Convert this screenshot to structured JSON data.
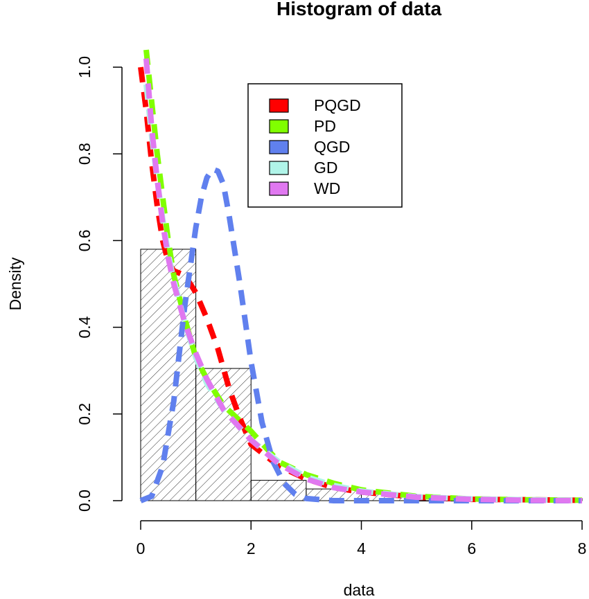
{
  "chart_data": {
    "type": "histogram",
    "title": "Histogram of data",
    "xlabel": "data",
    "ylabel": "Density",
    "xlim": [
      0,
      8
    ],
    "ylim": [
      0,
      1.0
    ],
    "x_ticks": [
      "0",
      "2",
      "4",
      "6",
      "8"
    ],
    "y_ticks": [
      "0.0",
      "0.2",
      "0.4",
      "0.6",
      "0.8",
      "1.0"
    ],
    "bins": [
      {
        "start": 0,
        "end": 1,
        "density": 0.58
      },
      {
        "start": 1,
        "end": 2,
        "density": 0.305
      },
      {
        "start": 2,
        "end": 3,
        "density": 0.047
      },
      {
        "start": 3,
        "end": 4,
        "density": 0.027
      },
      {
        "start": 4,
        "end": 5,
        "density": 0.015
      },
      {
        "start": 5,
        "end": 6,
        "density": 0.0
      },
      {
        "start": 6,
        "end": 7,
        "density": 0.0
      },
      {
        "start": 7,
        "end": 8,
        "density": 0.005
      }
    ],
    "legend": {
      "placement": "top-right",
      "entries": [
        {
          "name": "PQGD",
          "color": "#ff0000"
        },
        {
          "name": "PD",
          "color": "#80ff00"
        },
        {
          "name": "QGD",
          "color": "#6080ee"
        },
        {
          "name": "GD",
          "color": "#b0f4e8"
        },
        {
          "name": "WD",
          "color": "#e078f0"
        }
      ]
    },
    "series": [
      {
        "name": "PQGD",
        "color": "#ff0000",
        "x": [
          0,
          0.1,
          0.2,
          0.3,
          0.4,
          0.5,
          0.6,
          0.8,
          1.0,
          1.2,
          1.4,
          1.6,
          1.8,
          2.0,
          2.5,
          3.0,
          3.5,
          4.0,
          5.0,
          6.0,
          7.0,
          8.0
        ],
        "y": [
          1.0,
          0.9,
          0.78,
          0.68,
          0.6,
          0.55,
          0.53,
          0.52,
          0.48,
          0.42,
          0.35,
          0.26,
          0.19,
          0.13,
          0.08,
          0.05,
          0.03,
          0.02,
          0.008,
          0.003,
          0.002,
          0.001
        ]
      },
      {
        "name": "PD",
        "color": "#80ff00",
        "x": [
          0.1,
          0.2,
          0.3,
          0.4,
          0.5,
          0.6,
          0.8,
          1.0,
          1.2,
          1.5,
          2.0,
          2.5,
          3.0,
          3.5,
          4.0,
          5.0,
          6.0,
          7.0,
          8.0
        ],
        "y": [
          1.04,
          0.92,
          0.8,
          0.7,
          0.6,
          0.52,
          0.42,
          0.33,
          0.28,
          0.22,
          0.16,
          0.09,
          0.06,
          0.04,
          0.025,
          0.01,
          0.004,
          0.002,
          0.001
        ]
      },
      {
        "name": "QGD",
        "color": "#6080ee",
        "x": [
          0,
          0.2,
          0.4,
          0.6,
          0.8,
          1.0,
          1.1,
          1.2,
          1.3,
          1.4,
          1.5,
          1.6,
          1.8,
          2.0,
          2.2,
          2.4,
          2.6,
          2.8,
          3.0,
          3.5,
          4.0,
          5.0,
          6.0,
          7.0,
          8.0
        ],
        "y": [
          0.0,
          0.01,
          0.08,
          0.23,
          0.45,
          0.63,
          0.7,
          0.745,
          0.765,
          0.76,
          0.73,
          0.66,
          0.5,
          0.32,
          0.18,
          0.09,
          0.04,
          0.015,
          0.005,
          0.0,
          0.0,
          0.0,
          0.0,
          0.0,
          0.0
        ]
      },
      {
        "name": "GD",
        "color": "#b0f4e8",
        "x": [
          0.1,
          0.2,
          0.3,
          0.4,
          0.5,
          0.6,
          0.8,
          1.0,
          1.2,
          1.5,
          2.0,
          2.5,
          3.0,
          3.5,
          4.0,
          5.0,
          6.0,
          7.0,
          8.0
        ],
        "y": [
          0.96,
          0.84,
          0.74,
          0.65,
          0.57,
          0.51,
          0.41,
          0.33,
          0.27,
          0.21,
          0.14,
          0.09,
          0.055,
          0.035,
          0.022,
          0.009,
          0.004,
          0.002,
          0.001
        ]
      },
      {
        "name": "WD",
        "color": "#e078f0",
        "x": [
          0.1,
          0.2,
          0.3,
          0.4,
          0.5,
          0.6,
          0.8,
          1.0,
          1.2,
          1.5,
          2.0,
          2.5,
          3.0,
          3.5,
          4.0,
          5.0,
          6.0,
          7.0,
          8.0
        ],
        "y": [
          1.02,
          0.86,
          0.74,
          0.64,
          0.56,
          0.5,
          0.41,
          0.34,
          0.28,
          0.21,
          0.14,
          0.085,
          0.05,
          0.03,
          0.02,
          0.008,
          0.003,
          0.001,
          0.0
        ]
      }
    ]
  }
}
